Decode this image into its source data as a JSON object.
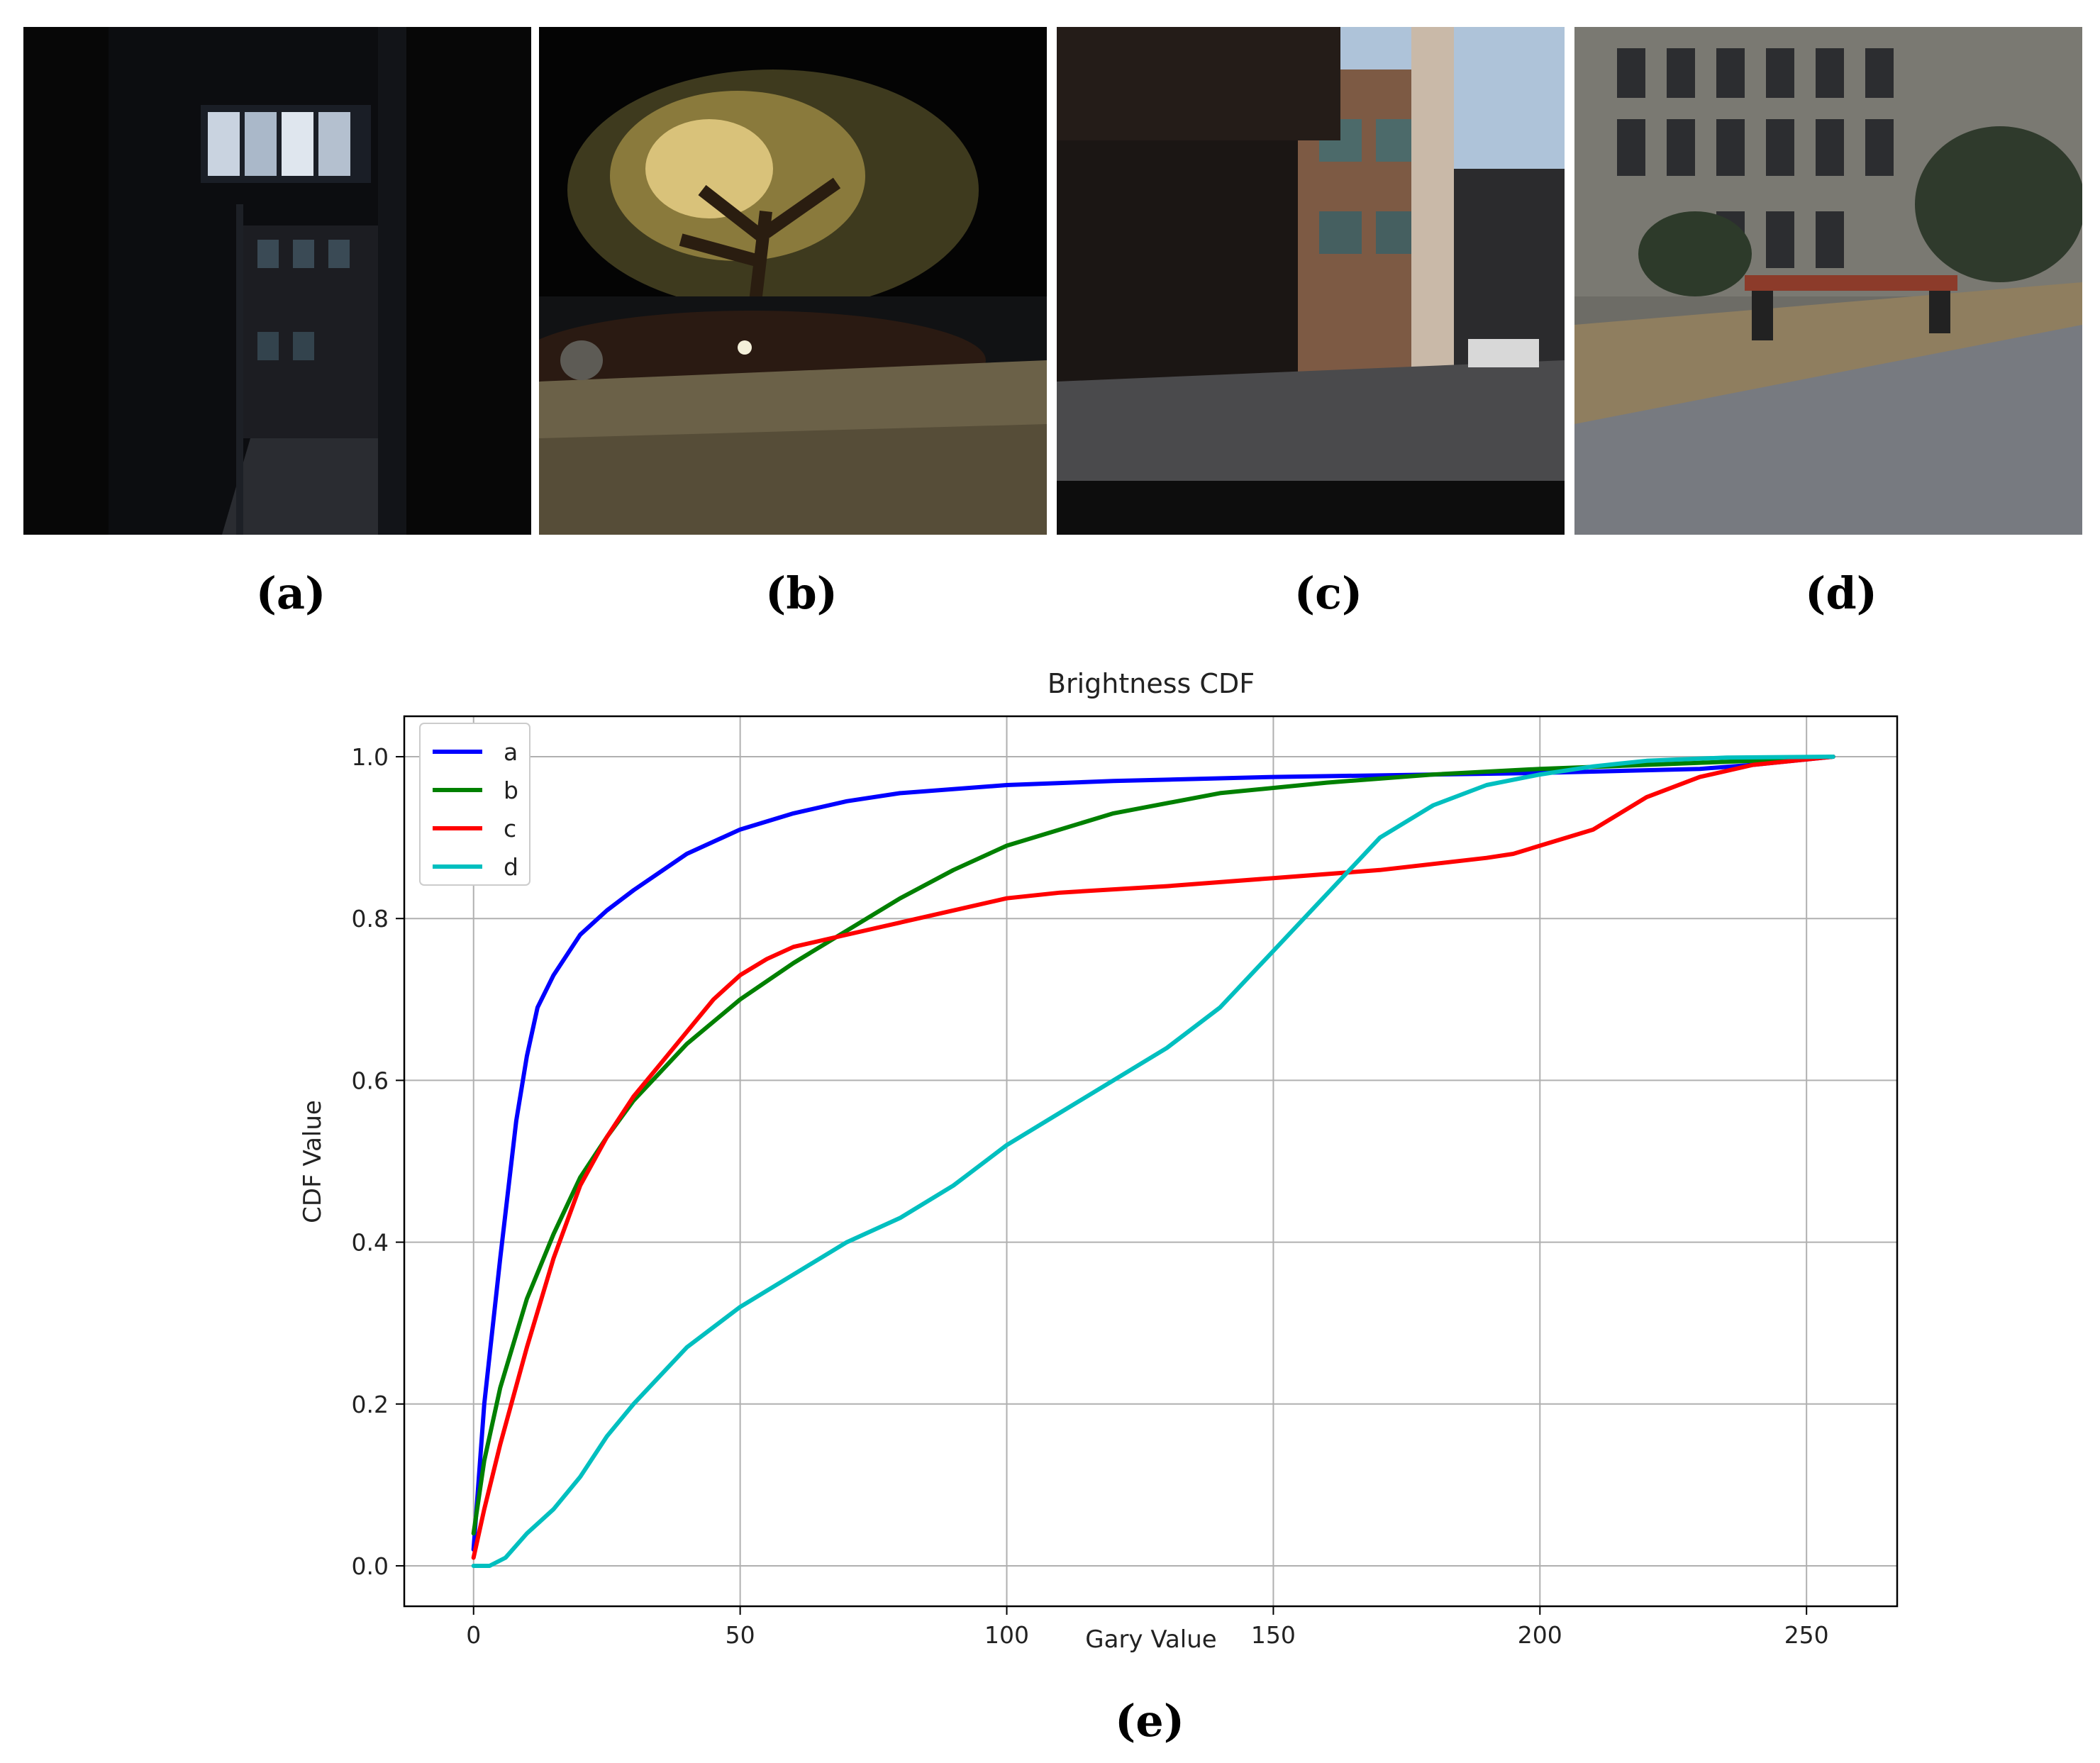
{
  "panel_labels": [
    "(a)",
    "(b)",
    "(c)",
    "(d)",
    "(e)"
  ],
  "chart_data": {
    "type": "line",
    "title": "Brightness CDF",
    "xlabel": "Gary Value",
    "ylabel": "CDF Value",
    "xlim": [
      -13,
      267
    ],
    "ylim": [
      -0.05,
      1.05
    ],
    "xticks": [
      0,
      50,
      100,
      150,
      200,
      250
    ],
    "yticks": [
      0.0,
      0.2,
      0.4,
      0.6,
      0.8,
      1.0
    ],
    "xtick_labels": [
      "0",
      "50",
      "100",
      "150",
      "200",
      "250"
    ],
    "ytick_labels": [
      "0.0",
      "0.2",
      "0.4",
      "0.6",
      "0.8",
      "1.0"
    ],
    "grid": true,
    "legend_position": "top-left",
    "series": [
      {
        "name": "a",
        "color": "#0000ff",
        "points": [
          [
            0,
            0.02
          ],
          [
            2,
            0.2
          ],
          [
            5,
            0.38
          ],
          [
            8,
            0.55
          ],
          [
            10,
            0.63
          ],
          [
            12,
            0.69
          ],
          [
            15,
            0.73
          ],
          [
            20,
            0.78
          ],
          [
            25,
            0.81
          ],
          [
            30,
            0.835
          ],
          [
            40,
            0.88
          ],
          [
            50,
            0.91
          ],
          [
            60,
            0.93
          ],
          [
            70,
            0.945
          ],
          [
            80,
            0.955
          ],
          [
            100,
            0.965
          ],
          [
            120,
            0.97
          ],
          [
            150,
            0.975
          ],
          [
            200,
            0.98
          ],
          [
            230,
            0.985
          ],
          [
            240,
            0.99
          ],
          [
            255,
            1.0
          ]
        ]
      },
      {
        "name": "b",
        "color": "#008000",
        "points": [
          [
            0,
            0.04
          ],
          [
            2,
            0.13
          ],
          [
            5,
            0.22
          ],
          [
            10,
            0.33
          ],
          [
            15,
            0.41
          ],
          [
            20,
            0.48
          ],
          [
            25,
            0.53
          ],
          [
            30,
            0.575
          ],
          [
            40,
            0.645
          ],
          [
            50,
            0.7
          ],
          [
            60,
            0.745
          ],
          [
            70,
            0.785
          ],
          [
            80,
            0.825
          ],
          [
            90,
            0.86
          ],
          [
            100,
            0.89
          ],
          [
            120,
            0.93
          ],
          [
            140,
            0.955
          ],
          [
            160,
            0.968
          ],
          [
            180,
            0.978
          ],
          [
            200,
            0.985
          ],
          [
            220,
            0.99
          ],
          [
            240,
            0.995
          ],
          [
            255,
            1.0
          ]
        ]
      },
      {
        "name": "c",
        "color": "#ff0000",
        "points": [
          [
            0,
            0.01
          ],
          [
            2,
            0.07
          ],
          [
            5,
            0.15
          ],
          [
            10,
            0.27
          ],
          [
            15,
            0.38
          ],
          [
            20,
            0.47
          ],
          [
            25,
            0.53
          ],
          [
            30,
            0.58
          ],
          [
            35,
            0.62
          ],
          [
            40,
            0.66
          ],
          [
            45,
            0.7
          ],
          [
            50,
            0.73
          ],
          [
            55,
            0.75
          ],
          [
            60,
            0.765
          ],
          [
            70,
            0.78
          ],
          [
            80,
            0.795
          ],
          [
            90,
            0.81
          ],
          [
            100,
            0.825
          ],
          [
            110,
            0.832
          ],
          [
            130,
            0.84
          ],
          [
            150,
            0.85
          ],
          [
            170,
            0.86
          ],
          [
            190,
            0.875
          ],
          [
            195,
            0.88
          ],
          [
            200,
            0.89
          ],
          [
            205,
            0.9
          ],
          [
            210,
            0.91
          ],
          [
            215,
            0.93
          ],
          [
            220,
            0.95
          ],
          [
            230,
            0.975
          ],
          [
            240,
            0.99
          ],
          [
            255,
            1.0
          ]
        ]
      },
      {
        "name": "d",
        "color": "#00bfbf",
        "points": [
          [
            0,
            0.0
          ],
          [
            3,
            0.0
          ],
          [
            6,
            0.01
          ],
          [
            10,
            0.04
          ],
          [
            15,
            0.07
          ],
          [
            20,
            0.11
          ],
          [
            25,
            0.16
          ],
          [
            30,
            0.2
          ],
          [
            40,
            0.27
          ],
          [
            50,
            0.32
          ],
          [
            60,
            0.36
          ],
          [
            70,
            0.4
          ],
          [
            80,
            0.43
          ],
          [
            90,
            0.47
          ],
          [
            100,
            0.52
          ],
          [
            110,
            0.56
          ],
          [
            120,
            0.6
          ],
          [
            130,
            0.64
          ],
          [
            140,
            0.69
          ],
          [
            150,
            0.76
          ],
          [
            160,
            0.83
          ],
          [
            170,
            0.9
          ],
          [
            180,
            0.94
          ],
          [
            190,
            0.965
          ],
          [
            200,
            0.978
          ],
          [
            210,
            0.988
          ],
          [
            220,
            0.995
          ],
          [
            235,
            0.999
          ],
          [
            255,
            1.0
          ]
        ]
      }
    ]
  }
}
